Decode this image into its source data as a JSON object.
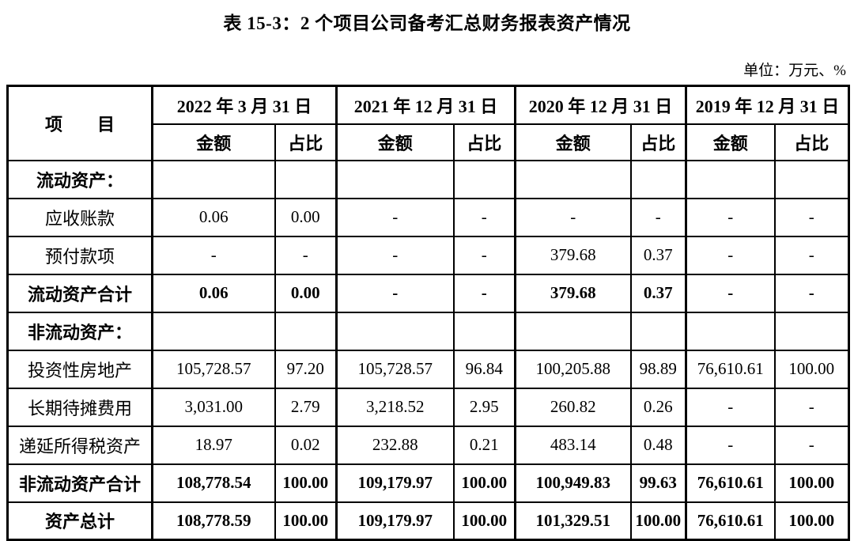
{
  "page": {
    "title": "表 15-3：2 个项目公司备考汇总财务报表资产情况",
    "unit_label": "单位：万元、%"
  },
  "colors": {
    "text": "#000000",
    "border": "#000000",
    "background": "#ffffff"
  },
  "table": {
    "item_header": "项　　目",
    "col_groups": [
      {
        "date": "2022 年 3 月 31 日",
        "amount_label": "金额",
        "ratio_label": "占比"
      },
      {
        "date": "2021 年 12 月 31 日",
        "amount_label": "金额",
        "ratio_label": "占比"
      },
      {
        "date": "2020 年 12 月 31 日",
        "amount_label": "金额",
        "ratio_label": "占比"
      },
      {
        "date": "2019 年 12 月 31 日",
        "amount_label": "金额",
        "ratio_label": "占比"
      }
    ],
    "rows": [
      {
        "label": "流动资产：",
        "bold": true,
        "section": true,
        "cells": [
          "",
          "",
          "",
          "",
          "",
          "",
          "",
          ""
        ]
      },
      {
        "label": "应收账款",
        "bold": false,
        "section": false,
        "cells": [
          "0.06",
          "0.00",
          "-",
          "-",
          "-",
          "-",
          "-",
          "-"
        ]
      },
      {
        "label": "预付款项",
        "bold": false,
        "section": false,
        "cells": [
          "-",
          "-",
          "-",
          "-",
          "379.68",
          "0.37",
          "-",
          "-"
        ]
      },
      {
        "label": "流动资产合计",
        "bold": true,
        "section": false,
        "cells": [
          "0.06",
          "0.00",
          "-",
          "-",
          "379.68",
          "0.37",
          "-",
          "-"
        ]
      },
      {
        "label": "非流动资产：",
        "bold": true,
        "section": true,
        "cells": [
          "",
          "",
          "",
          "",
          "",
          "",
          "",
          ""
        ]
      },
      {
        "label": "投资性房地产",
        "bold": false,
        "section": false,
        "cells": [
          "105,728.57",
          "97.20",
          "105,728.57",
          "96.84",
          "100,205.88",
          "98.89",
          "76,610.61",
          "100.00"
        ]
      },
      {
        "label": "长期待摊费用",
        "bold": false,
        "section": false,
        "cells": [
          "3,031.00",
          "2.79",
          "3,218.52",
          "2.95",
          "260.82",
          "0.26",
          "-",
          "-"
        ]
      },
      {
        "label": "递延所得税资产",
        "bold": false,
        "section": false,
        "cells": [
          "18.97",
          "0.02",
          "232.88",
          "0.21",
          "483.14",
          "0.48",
          "-",
          "-"
        ]
      },
      {
        "label": "非流动资产合计",
        "bold": true,
        "section": false,
        "cells": [
          "108,778.54",
          "100.00",
          "109,179.97",
          "100.00",
          "100,949.83",
          "99.63",
          "76,610.61",
          "100.00"
        ]
      },
      {
        "label": "资产总计",
        "bold": true,
        "section": false,
        "cells": [
          "108,778.59",
          "100.00",
          "109,179.97",
          "100.00",
          "101,329.51",
          "100.00",
          "76,610.61",
          "100.00"
        ]
      }
    ]
  }
}
